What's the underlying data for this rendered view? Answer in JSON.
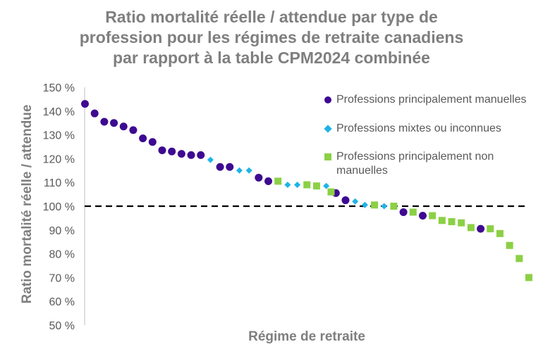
{
  "chart_data": {
    "type": "scatter",
    "title_lines": [
      "Ratio mortalité réelle / attendue par type de",
      "profession pour les régimes de retraite canadiens",
      "par rapport à la table CPM2024 combinée"
    ],
    "xlabel": "Régime de retraite",
    "ylabel": "Ratio mortalité réelle / attendue",
    "ylim": [
      50,
      150
    ],
    "y_ticks": [
      "50 %",
      "60 %",
      "70 %",
      "80 %",
      "90 %",
      "100 %",
      "110 %",
      "120 %",
      "130 %",
      "140 %",
      "150 %"
    ],
    "reference_line": 100,
    "legend_position": "top-right",
    "colors": {
      "manual": "#3d0a91",
      "mixed": "#1eb4e6",
      "non_manual": "#8cd045",
      "axis": "#bfbfbf",
      "reference": "#000000"
    },
    "series": [
      {
        "name": "Professions principalement manuelles",
        "marker": "circle",
        "values": [
          [
            1,
            143
          ],
          [
            2,
            139
          ],
          [
            3,
            135.5
          ],
          [
            4,
            135
          ],
          [
            5,
            133.5
          ],
          [
            6,
            132
          ],
          [
            7,
            128.5
          ],
          [
            8,
            127
          ],
          [
            9,
            123.5
          ],
          [
            10,
            123
          ],
          [
            11,
            122
          ],
          [
            12,
            121.5
          ],
          [
            13,
            121.5
          ],
          [
            15,
            116.5
          ],
          [
            16,
            116.5
          ],
          [
            19,
            112
          ],
          [
            20,
            110.5
          ],
          [
            27,
            105.5
          ],
          [
            28,
            102.5
          ],
          [
            34,
            97.5
          ],
          [
            36,
            96
          ],
          [
            42,
            90.5
          ]
        ]
      },
      {
        "name": "Professions mixtes ou inconnues",
        "marker": "diamond",
        "values": [
          [
            14,
            119.5
          ],
          [
            17,
            115
          ],
          [
            18,
            115
          ],
          [
            22,
            109
          ],
          [
            23,
            109
          ],
          [
            26,
            108.5
          ],
          [
            29,
            102
          ],
          [
            30,
            100.5
          ],
          [
            32,
            100
          ]
        ]
      },
      {
        "name": "Professions principalement non manuelles",
        "marker": "square",
        "values": [
          [
            21,
            110.5
          ],
          [
            24,
            109
          ],
          [
            25,
            108.5
          ],
          [
            26.5,
            106
          ],
          [
            31,
            100.5
          ],
          [
            33,
            100
          ],
          [
            35,
            97.5
          ],
          [
            37,
            96
          ],
          [
            38,
            94
          ],
          [
            39,
            93.5
          ],
          [
            40,
            93
          ],
          [
            41,
            91
          ],
          [
            43,
            90.5
          ],
          [
            44,
            88.5
          ],
          [
            45,
            83.5
          ],
          [
            46,
            78
          ],
          [
            47,
            70
          ]
        ]
      }
    ]
  },
  "legend": {
    "manual": "Professions principalement manuelles",
    "mixed": "Professions mixtes ou inconnues",
    "non_manual": "Professions principalement non manuelles"
  }
}
